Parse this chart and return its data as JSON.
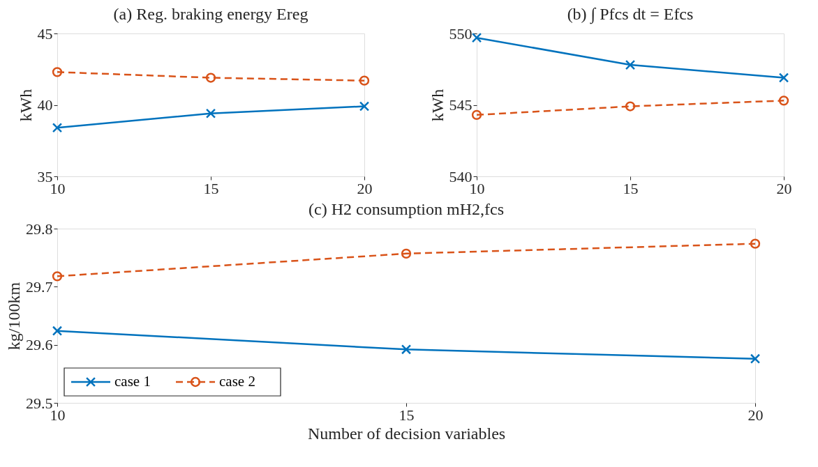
{
  "chart_data": [
    {
      "type": "line",
      "title": "(a) Reg. braking energy Ereg",
      "ylabel": "kWh",
      "x": [
        10,
        15,
        20
      ],
      "xlim": [
        10,
        20
      ],
      "xticks": [
        10,
        15,
        20
      ],
      "ylim": [
        35,
        45
      ],
      "yticks": [
        35,
        40,
        45
      ],
      "grid": false,
      "series": [
        {
          "color": "#0072bd",
          "marker": "cross",
          "line_style": "solid",
          "values": [
            38.4,
            39.4,
            39.9
          ]
        },
        {
          "color": "#d95319",
          "marker": "circle",
          "line_style": "dashed",
          "values": [
            42.3,
            41.9,
            41.7
          ]
        }
      ]
    },
    {
      "type": "line",
      "title": "(b) ∫ Pfcs dt = Efcs",
      "ylabel": "kWh",
      "x": [
        10,
        15,
        20
      ],
      "xlim": [
        10,
        20
      ],
      "xticks": [
        10,
        15,
        20
      ],
      "ylim": [
        540,
        550
      ],
      "yticks": [
        540,
        545,
        550
      ],
      "grid": false,
      "series": [
        {
          "color": "#0072bd",
          "marker": "cross",
          "line_style": "solid",
          "values": [
            549.7,
            547.8,
            546.9
          ]
        },
        {
          "color": "#d95319",
          "marker": "circle",
          "line_style": "dashed",
          "values": [
            544.3,
            544.9,
            545.3
          ]
        }
      ]
    },
    {
      "type": "line",
      "title": "(c) H2 consumption mH2,fcs",
      "xlabel": "Number of decision variables",
      "ylabel": "kg/100km",
      "x": [
        10,
        15,
        20
      ],
      "xlim": [
        10,
        20
      ],
      "xticks": [
        10,
        15,
        20
      ],
      "ylim": [
        29.5,
        29.8
      ],
      "yticks": [
        29.5,
        29.6,
        29.7,
        29.8
      ],
      "grid": false,
      "legend": "bottom left",
      "series": [
        {
          "name": "case 1",
          "color": "#0072bd",
          "marker": "cross",
          "line_style": "solid",
          "values": [
            29.624,
            29.592,
            29.576
          ]
        },
        {
          "name": "case 2",
          "color": "#d95319",
          "marker": "circle",
          "line_style": "dashed",
          "values": [
            29.718,
            29.757,
            29.774
          ]
        }
      ]
    }
  ]
}
